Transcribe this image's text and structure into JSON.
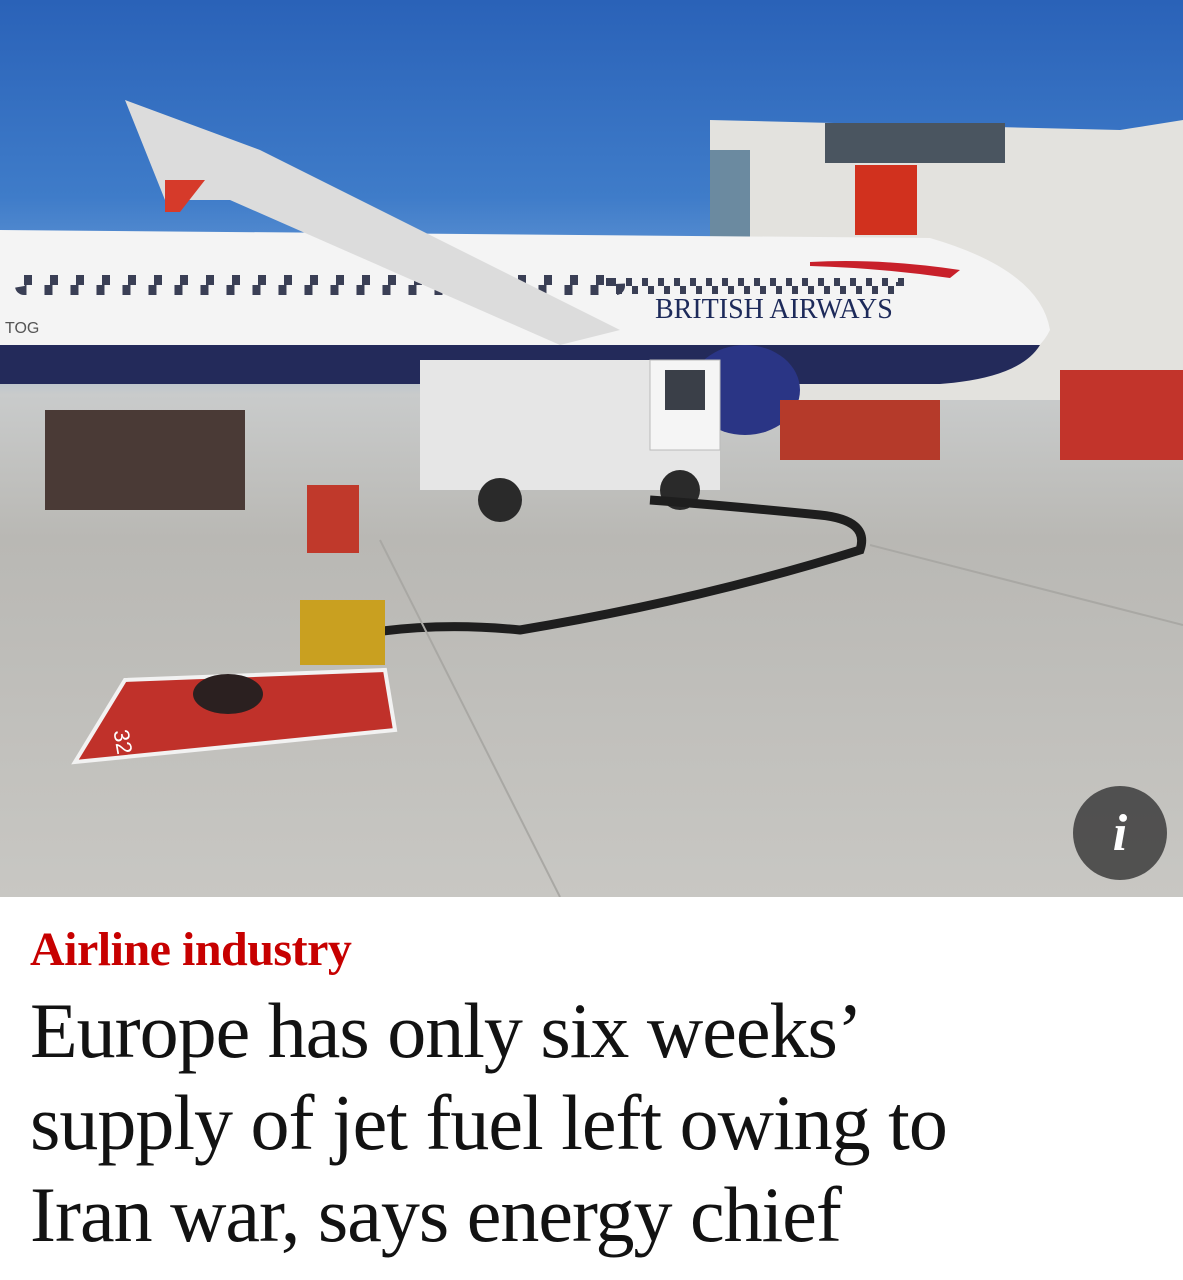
{
  "article": {
    "image_alt_icon": "info-icon",
    "info_label": "i",
    "kicker": "Airline industry",
    "headline_lines": [
      "Europe has only six weeks’",
      "supply of jet fuel left owing to",
      "Iran war, says energy chief"
    ],
    "photo_texts": {
      "airline": "BRITISH AIRWAYS",
      "registration": "TOG",
      "stand": "32"
    }
  },
  "colors": {
    "kicker": "#c70000",
    "headline": "#121212",
    "sky": "#2a62b8"
  }
}
